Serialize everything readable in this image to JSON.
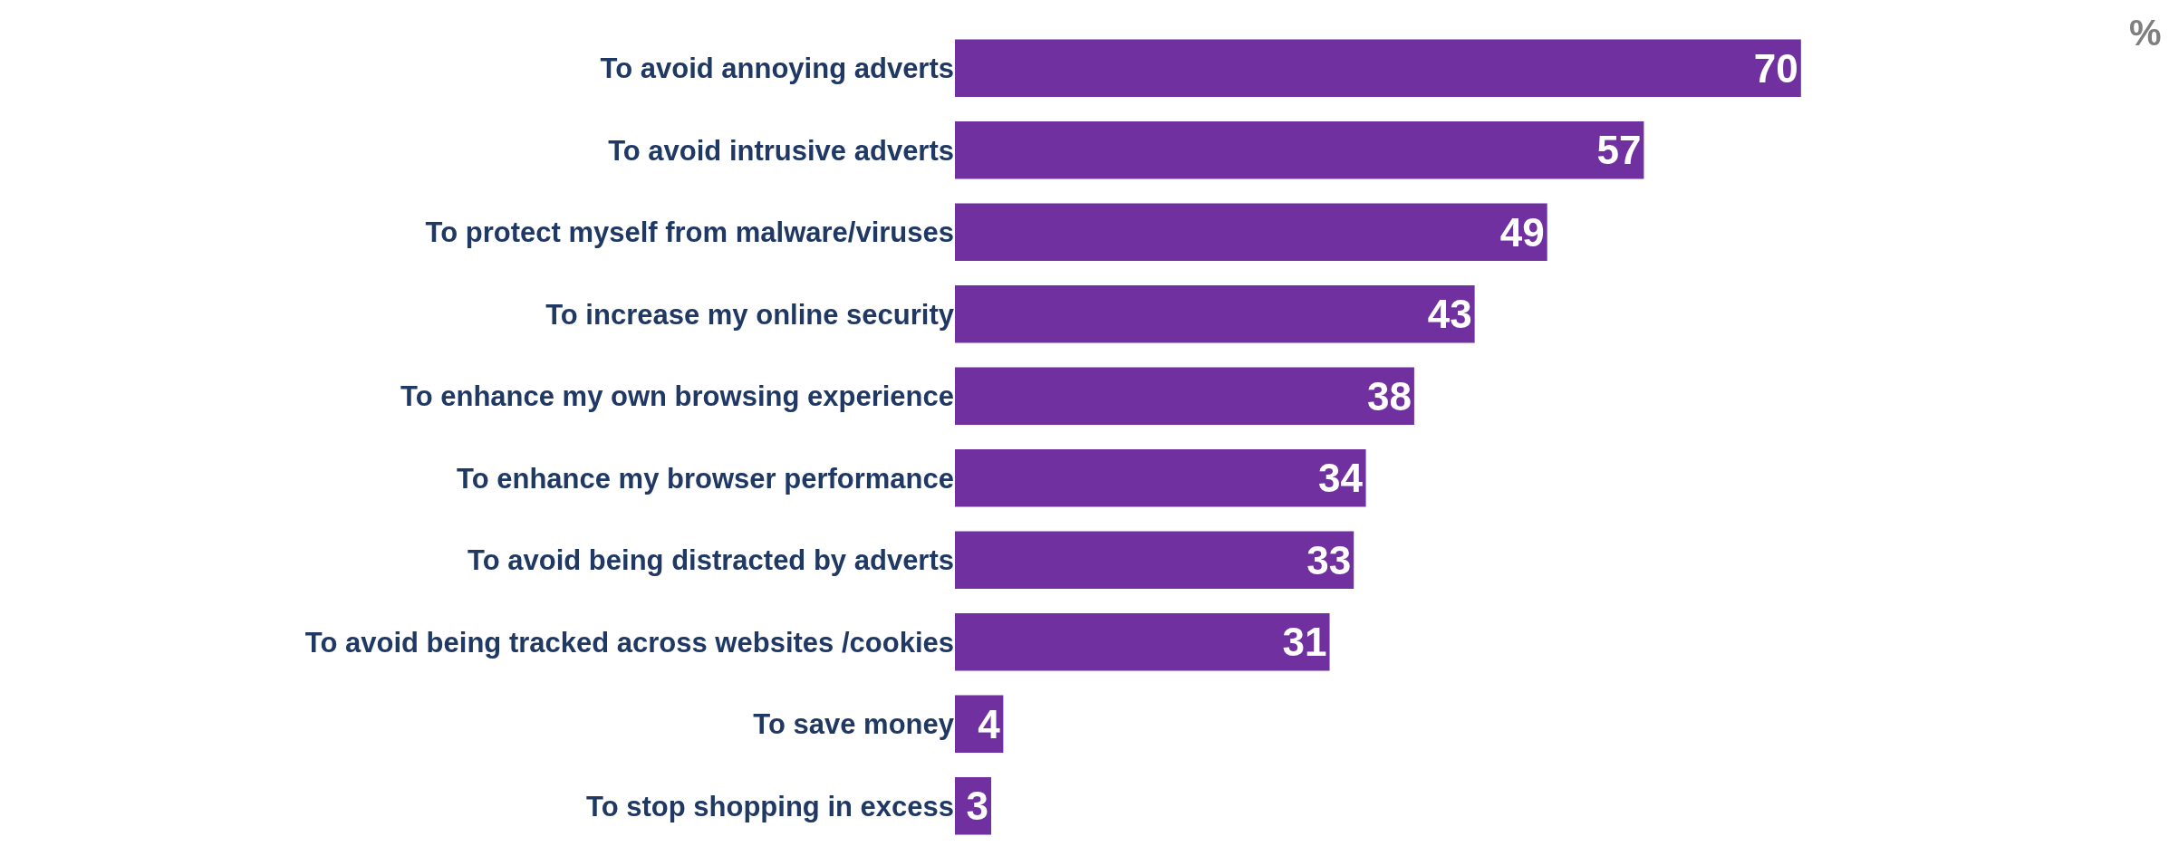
{
  "chart_data": {
    "type": "bar",
    "orientation": "horizontal",
    "categories": [
      "To avoid annoying adverts",
      "To avoid intrusive adverts",
      "To protect myself from malware/viruses",
      "To increase my online security",
      "To enhance my own browsing experience",
      "To enhance my browser performance",
      "To avoid being distracted by adverts",
      "To avoid being tracked across websites /cookies",
      "To save money",
      "To stop shopping in excess"
    ],
    "values": [
      70,
      57,
      49,
      43,
      38,
      34,
      33,
      31,
      4,
      3
    ],
    "color": "#7030a0",
    "data_labels": true,
    "annotations": [
      "%"
    ]
  }
}
